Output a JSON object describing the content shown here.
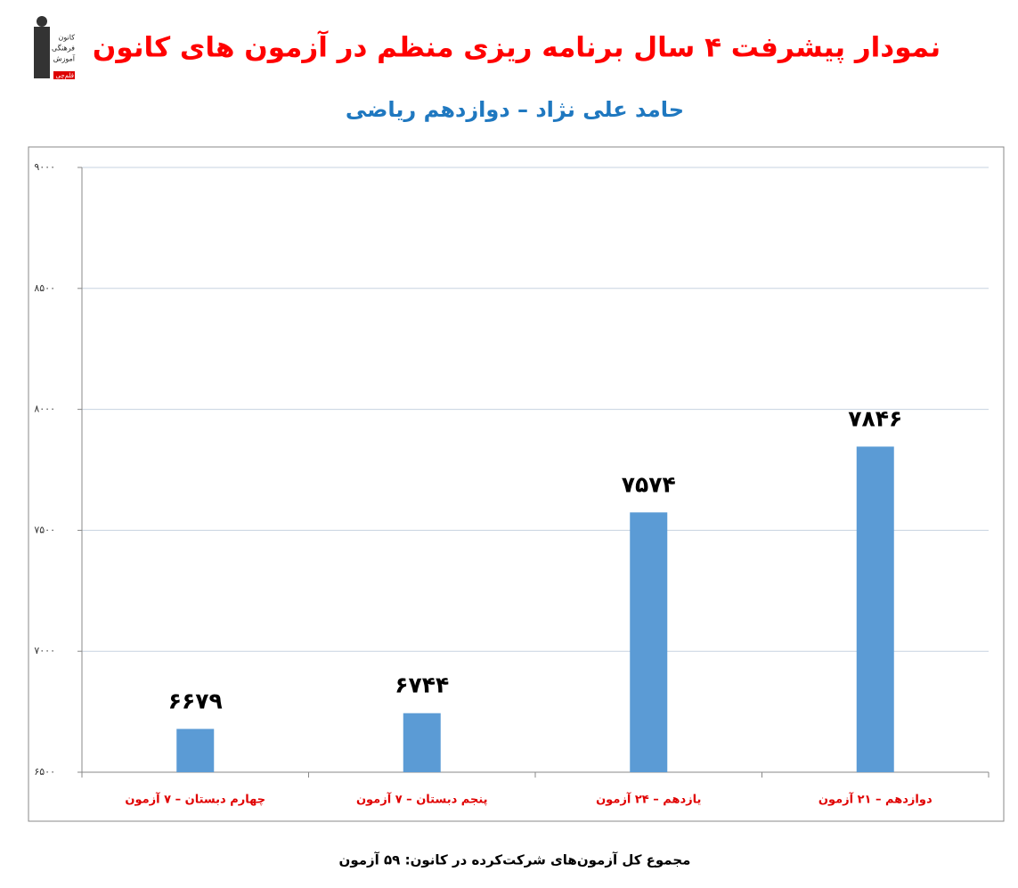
{
  "logo": {
    "lines": [
      "کانون",
      "فرهنگی",
      "آموزش",
      "قلم‌چی"
    ]
  },
  "chart_data": {
    "type": "bar",
    "title": "نمودار پیشرفت ۴ سال برنامه ریزی منظم در آزمون های کانون",
    "subtitle": "حامد علی نژاد – دوازدهم ریاضی",
    "footer": "مجموع کل آزمون‌های شرکت‌کرده در کانون: ۵۹ آزمون",
    "categories": [
      "چهارم دبستان – ۷ آزمون",
      "پنجم دبستان – ۷ آزمون",
      "یازدهم – ۲۴ آزمون",
      "دوازدهم – ۲۱ آزمون"
    ],
    "values": [
      6679,
      6744,
      7574,
      7846
    ],
    "value_labels": [
      "۶۶۷۹",
      "۶۷۴۴",
      "۷۵۷۴",
      "۷۸۴۶"
    ],
    "color": "#5b9bd5",
    "ylim": [
      6500,
      9000
    ],
    "yticks": [
      {
        "value": 6500,
        "label": "۶۵۰۰"
      },
      {
        "value": 7000,
        "label": "۷۰۰۰"
      },
      {
        "value": 7500,
        "label": "۷۵۰۰"
      },
      {
        "value": 8000,
        "label": "۸۰۰۰"
      },
      {
        "value": 8500,
        "label": "۸۵۰۰"
      },
      {
        "value": 9000,
        "label": "۹۰۰۰"
      }
    ],
    "grid": true
  }
}
